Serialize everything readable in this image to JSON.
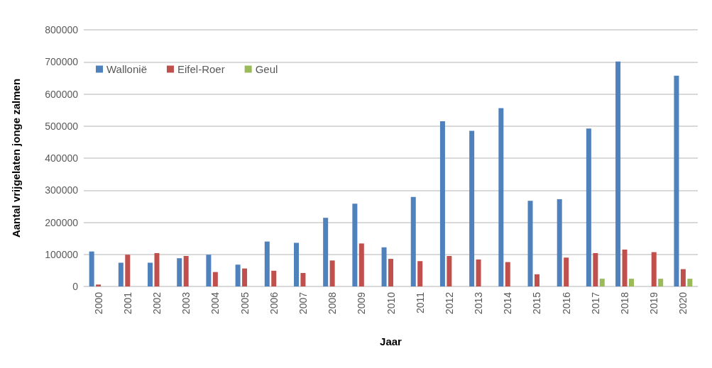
{
  "chart_data": {
    "type": "bar",
    "xlabel": "Jaar",
    "ylabel": "Aantal vrijgelaten jonge zalmen",
    "categories": [
      "2000",
      "2001",
      "2002",
      "2003",
      "2004",
      "2005",
      "2006",
      "2007",
      "2008",
      "2009",
      "2010",
      "2011",
      "2012",
      "2013",
      "2014",
      "2015",
      "2016",
      "2017",
      "2018",
      "2019",
      "2020"
    ],
    "series": [
      {
        "name": "Wallonië",
        "color": "#4f81bd",
        "values": [
          109000,
          74000,
          74000,
          88000,
          99000,
          68000,
          140000,
          136000,
          214000,
          258000,
          122000,
          279000,
          515000,
          485000,
          556000,
          267000,
          272000,
          492000,
          701000,
          null,
          657000
        ]
      },
      {
        "name": "Eifel-Roer",
        "color": "#c0504d",
        "values": [
          6000,
          99000,
          104000,
          95000,
          45000,
          56000,
          49000,
          42000,
          81000,
          134000,
          86000,
          79000,
          95000,
          84000,
          76000,
          38000,
          90000,
          104000,
          115000,
          107000,
          54000
        ]
      },
      {
        "name": "Geul",
        "color": "#9bbb59",
        "values": [
          null,
          null,
          null,
          null,
          null,
          null,
          null,
          null,
          null,
          null,
          null,
          null,
          null,
          null,
          null,
          null,
          null,
          24000,
          24000,
          24000,
          24000
        ]
      }
    ],
    "ylim": [
      0,
      800000
    ],
    "yticks": [
      0,
      100000,
      200000,
      300000,
      400000,
      500000,
      600000,
      700000,
      800000
    ],
    "grid": "y",
    "legend": "top left"
  }
}
